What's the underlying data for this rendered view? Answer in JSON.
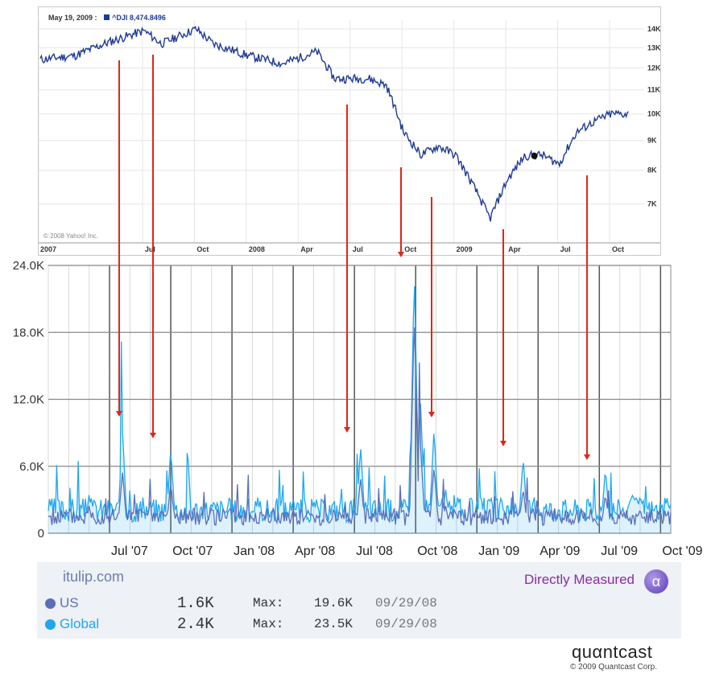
{
  "yahoo": {
    "date_label": "May 19, 2009 :",
    "symbol": "^DJI",
    "quote": "8,474.8496",
    "copyright": "© 2008 Yahoo! Inc.",
    "line_color": "#1f3a93",
    "x_ticks": [
      "2007",
      "Jul",
      "Oct",
      "2008",
      "Apr",
      "Jul",
      "Oct",
      "2009",
      "Apr",
      "Jul",
      "Oct"
    ],
    "y_ticks": [
      "14K",
      "13K",
      "12K",
      "11K",
      "10K",
      "9K",
      "8K",
      "7K"
    ]
  },
  "chart_data": [
    {
      "type": "line",
      "title": "",
      "series": [
        {
          "name": "^DJI",
          "x": [
            "2007-01",
            "2007-03",
            "2007-05",
            "2007-07",
            "2007-08",
            "2007-10",
            "2007-11",
            "2008-01",
            "2008-03",
            "2008-05",
            "2008-06",
            "2008-08",
            "2008-09",
            "2008-10",
            "2008-11",
            "2008-12",
            "2009-01",
            "2009-03",
            "2009-04",
            "2009-05",
            "2009-06",
            "2009-07",
            "2009-08",
            "2009-09",
            "2009-10",
            "2009-11"
          ],
          "values": [
            12400,
            12600,
            13300,
            13900,
            13200,
            14000,
            13200,
            12600,
            12200,
            12800,
            11500,
            11500,
            11200,
            9300,
            8500,
            8800,
            8500,
            6600,
            7700,
            8470,
            8500,
            8200,
            9300,
            9700,
            10000,
            10000
          ]
        }
      ],
      "ylim": [
        6000,
        14500
      ],
      "y_scale": "log"
    },
    {
      "type": "area",
      "title": "",
      "x_ticks": [
        "Jul '07",
        "Oct '07",
        "Jan '08",
        "Apr '08",
        "Jul '08",
        "Oct '08",
        "Jan '09",
        "Apr '09",
        "Jul '09",
        "Oct '09"
      ],
      "y_ticks": [
        "0",
        "6.0K",
        "12.0K",
        "18.0K",
        "24.0K"
      ],
      "ylim": [
        0,
        24000
      ],
      "series": [
        {
          "name": "Global",
          "color": "#1fa8ef",
          "x": [
            "2007-04",
            "2007-06",
            "2007-07-20",
            "2007-09",
            "2007-10-01",
            "2007-12",
            "2008-02",
            "2008-04",
            "2008-05",
            "2008-07-10",
            "2008-08",
            "2008-09-29",
            "2008-10-08",
            "2008-10-28",
            "2008-11-15",
            "2008-12",
            "2009-01",
            "2009-03-09",
            "2009-04",
            "2009-05",
            "2009-07-10",
            "2009-08",
            "2009-09",
            "2009-10-10"
          ],
          "values": [
            2000,
            3500,
            9200,
            2800,
            7600,
            2000,
            2200,
            3200,
            2000,
            7800,
            2200,
            23500,
            12000,
            9400,
            4000,
            2500,
            2800,
            6800,
            2500,
            2200,
            5800,
            2200,
            3500,
            3000
          ]
        },
        {
          "name": "US",
          "color": "#5b6fb8",
          "x": [
            "2007-04",
            "2007-06",
            "2007-07-20",
            "2007-09",
            "2007-10-01",
            "2007-12",
            "2008-02",
            "2008-04",
            "2008-05",
            "2008-07-10",
            "2008-08",
            "2008-09-29",
            "2008-10-08",
            "2008-10-28",
            "2008-11-15",
            "2008-12",
            "2009-01",
            "2009-03-09",
            "2009-04",
            "2009-05",
            "2009-07-10",
            "2009-08",
            "2009-09",
            "2009-10-10"
          ],
          "values": [
            1500,
            2500,
            5500,
            1800,
            4500,
            1400,
            1500,
            2200,
            1400,
            5000,
            1500,
            19600,
            8000,
            6000,
            2500,
            1700,
            1800,
            4000,
            1600,
            1500,
            3500,
            1400,
            2200,
            1800
          ]
        }
      ]
    }
  ],
  "annotations": {
    "arrow_color": "#e0261c"
  },
  "panel": {
    "site": "itulip.com",
    "measured": "Directly Measured",
    "alpha_glyph": "α",
    "rows": [
      {
        "label": "US",
        "value": "1.6K",
        "max_label": "Max:",
        "max_value": "19.6K",
        "date": "09/29/08",
        "color": "#5b6fb8"
      },
      {
        "label": "Global",
        "value": "2.4K",
        "max_label": "Max:",
        "max_value": "23.5K",
        "date": "09/29/08",
        "color": "#1fa8ef"
      }
    ]
  },
  "footer": {
    "logo": "quαntcast",
    "copyright": "© 2009 Quantcast Corp."
  }
}
